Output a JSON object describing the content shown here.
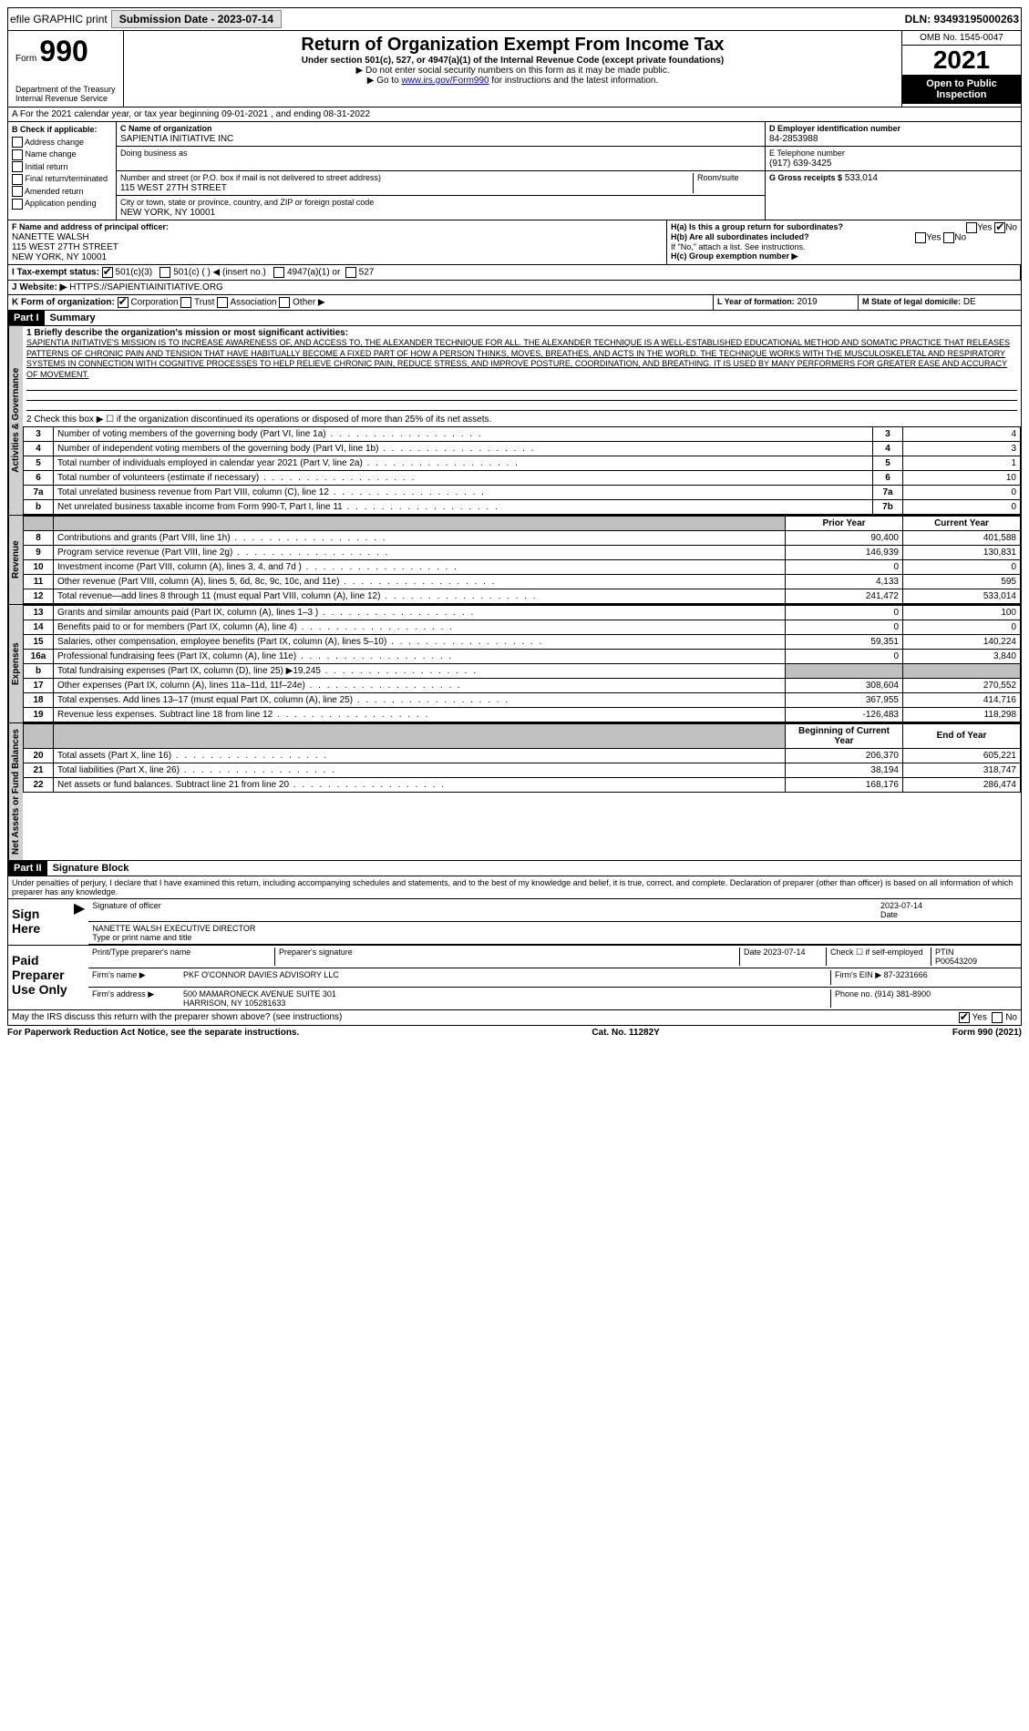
{
  "topbar": {
    "efile": "efile GRAPHIC print",
    "submission_btn": "Submission Date - 2023-07-14",
    "dln": "DLN: 93493195000263"
  },
  "header": {
    "form_prefix": "Form",
    "form_number": "990",
    "title": "Return of Organization Exempt From Income Tax",
    "subtitle": "Under section 501(c), 527, or 4947(a)(1) of the Internal Revenue Code (except private foundations)",
    "instr1": "▶ Do not enter social security numbers on this form as it may be made public.",
    "instr2_pre": "▶ Go to ",
    "instr2_link": "www.irs.gov/Form990",
    "instr2_post": " for instructions and the latest information.",
    "omb": "OMB No. 1545-0047",
    "year": "2021",
    "open": "Open to Public Inspection",
    "dept": "Department of the Treasury",
    "irs": "Internal Revenue Service"
  },
  "line_a": "A For the 2021 calendar year, or tax year beginning 09-01-2021  , and ending 08-31-2022",
  "box_b": {
    "label": "B Check if applicable:",
    "items": [
      "Address change",
      "Name change",
      "Initial return",
      "Final return/terminated",
      "Amended return",
      "Application pending"
    ]
  },
  "box_c": {
    "label": "C Name of organization",
    "name": "SAPIENTIA INITIATIVE INC",
    "dba_label": "Doing business as",
    "addr_label": "Number and street (or P.O. box if mail is not delivered to street address)",
    "room_label": "Room/suite",
    "addr": "115 WEST 27TH STREET",
    "city_label": "City or town, state or province, country, and ZIP or foreign postal code",
    "city": "NEW YORK, NY  10001"
  },
  "box_d": {
    "label": "D Employer identification number",
    "value": "84-2853988"
  },
  "box_e": {
    "label": "E Telephone number",
    "value": "(917) 639-3425"
  },
  "box_g": {
    "label": "G Gross receipts $",
    "value": "533,014"
  },
  "box_f": {
    "label": "F  Name and address of principal officer:",
    "name": "NANETTE WALSH",
    "addr1": "115 WEST 27TH STREET",
    "addr2": "NEW YORK, NY  10001"
  },
  "box_h": {
    "ha_label": "H(a)  Is this a group return for subordinates?",
    "hb_label": "H(b)  Are all subordinates included?",
    "hb_note": "If \"No,\" attach a list. See instructions.",
    "hc_label": "H(c)  Group exemption number ▶",
    "yes": "Yes",
    "no": "No"
  },
  "box_i": {
    "label": "I  Tax-exempt status:",
    "opt1": "501(c)(3)",
    "opt2": "501(c) (  ) ◀ (insert no.)",
    "opt3": "4947(a)(1) or",
    "opt4": "527"
  },
  "box_j": {
    "label": "J  Website: ▶",
    "value": "HTTPS://SAPIENTIAINITIATIVE.ORG"
  },
  "box_k": {
    "label": "K Form of organization:",
    "corp": "Corporation",
    "trust": "Trust",
    "assoc": "Association",
    "other": "Other ▶"
  },
  "box_l": {
    "label": "L Year of formation:",
    "value": "2019"
  },
  "box_m": {
    "label": "M State of legal domicile:",
    "value": "DE"
  },
  "part1": {
    "header": "Part I",
    "title": "Summary",
    "vtab_gov": "Activities & Governance",
    "vtab_rev": "Revenue",
    "vtab_exp": "Expenses",
    "vtab_net": "Net Assets or Fund Balances",
    "line1_label": "1  Briefly describe the organization's mission or most significant activities:",
    "mission": "SAPIENTIA INITIATIVE'S MISSION IS TO INCREASE AWARENESS OF, AND ACCESS TO, THE ALEXANDER TECHNIQUE FOR ALL. THE ALEXANDER TECHNIQUE IS A WELL-ESTABLISHED EDUCATIONAL METHOD AND SOMATIC PRACTICE THAT RELEASES PATTERNS OF CHRONIC PAIN AND TENSION THAT HAVE HABITUALLY BECOME A FIXED PART OF HOW A PERSON THINKS, MOVES, BREATHES, AND ACTS IN THE WORLD. THE TECHNIQUE WORKS WITH THE MUSCULOSKELETAL AND RESPIRATORY SYSTEMS IN CONNECTION WITH COGNITIVE PROCESSES TO HELP RELIEVE CHRONIC PAIN, REDUCE STRESS, AND IMPROVE POSTURE, COORDINATION, AND BREATHING. IT IS USED BY MANY PERFORMERS FOR GREATER EASE AND ACCURACY OF MOVEMENT.",
    "line2": "2   Check this box ▶ ☐ if the organization discontinued its operations or disposed of more than 25% of its net assets.",
    "rows_gov": [
      {
        "n": "3",
        "desc": "Number of voting members of the governing body (Part VI, line 1a)",
        "box": "3",
        "val": "4"
      },
      {
        "n": "4",
        "desc": "Number of independent voting members of the governing body (Part VI, line 1b)",
        "box": "4",
        "val": "3"
      },
      {
        "n": "5",
        "desc": "Total number of individuals employed in calendar year 2021 (Part V, line 2a)",
        "box": "5",
        "val": "1"
      },
      {
        "n": "6",
        "desc": "Total number of volunteers (estimate if necessary)",
        "box": "6",
        "val": "10"
      },
      {
        "n": "7a",
        "desc": "Total unrelated business revenue from Part VIII, column (C), line 12",
        "box": "7a",
        "val": "0"
      },
      {
        "n": "b",
        "desc": "Net unrelated business taxable income from Form 990-T, Part I, line 11",
        "box": "7b",
        "val": "0"
      }
    ],
    "col_prior": "Prior Year",
    "col_current": "Current Year",
    "rows_rev": [
      {
        "n": "8",
        "desc": "Contributions and grants (Part VIII, line 1h)",
        "p": "90,400",
        "c": "401,588"
      },
      {
        "n": "9",
        "desc": "Program service revenue (Part VIII, line 2g)",
        "p": "146,939",
        "c": "130,831"
      },
      {
        "n": "10",
        "desc": "Investment income (Part VIII, column (A), lines 3, 4, and 7d )",
        "p": "0",
        "c": "0"
      },
      {
        "n": "11",
        "desc": "Other revenue (Part VIII, column (A), lines 5, 6d, 8c, 9c, 10c, and 11e)",
        "p": "4,133",
        "c": "595"
      },
      {
        "n": "12",
        "desc": "Total revenue—add lines 8 through 11 (must equal Part VIII, column (A), line 12)",
        "p": "241,472",
        "c": "533,014"
      }
    ],
    "rows_exp": [
      {
        "n": "13",
        "desc": "Grants and similar amounts paid (Part IX, column (A), lines 1–3 )",
        "p": "0",
        "c": "100"
      },
      {
        "n": "14",
        "desc": "Benefits paid to or for members (Part IX, column (A), line 4)",
        "p": "0",
        "c": "0"
      },
      {
        "n": "15",
        "desc": "Salaries, other compensation, employee benefits (Part IX, column (A), lines 5–10)",
        "p": "59,351",
        "c": "140,224"
      },
      {
        "n": "16a",
        "desc": "Professional fundraising fees (Part IX, column (A), line 11e)",
        "p": "0",
        "c": "3,840"
      },
      {
        "n": "b",
        "desc": "Total fundraising expenses (Part IX, column (D), line 25) ▶19,245",
        "p": "shade",
        "c": "shade"
      },
      {
        "n": "17",
        "desc": "Other expenses (Part IX, column (A), lines 11a–11d, 11f–24e)",
        "p": "308,604",
        "c": "270,552"
      },
      {
        "n": "18",
        "desc": "Total expenses. Add lines 13–17 (must equal Part IX, column (A), line 25)",
        "p": "367,955",
        "c": "414,716"
      },
      {
        "n": "19",
        "desc": "Revenue less expenses. Subtract line 18 from line 12",
        "p": "-126,483",
        "c": "118,298"
      }
    ],
    "col_begin": "Beginning of Current Year",
    "col_end": "End of Year",
    "rows_net": [
      {
        "n": "20",
        "desc": "Total assets (Part X, line 16)",
        "p": "206,370",
        "c": "605,221"
      },
      {
        "n": "21",
        "desc": "Total liabilities (Part X, line 26)",
        "p": "38,194",
        "c": "318,747"
      },
      {
        "n": "22",
        "desc": "Net assets or fund balances. Subtract line 21 from line 20",
        "p": "168,176",
        "c": "286,474"
      }
    ]
  },
  "part2": {
    "header": "Part II",
    "title": "Signature Block",
    "perjury": "Under penalties of perjury, I declare that I have examined this return, including accompanying schedules and statements, and to the best of my knowledge and belief, it is true, correct, and complete. Declaration of preparer (other than officer) is based on all information of which preparer has any knowledge.",
    "sign_here": "Sign Here",
    "sig_officer": "Signature of officer",
    "date": "Date",
    "date_val": "2023-07-14",
    "name_title": "NANETTE WALSH  EXECUTIVE DIRECTOR",
    "type_name": "Type or print name and title",
    "paid": "Paid Preparer Use Only",
    "prep_name_label": "Print/Type preparer's name",
    "prep_sig_label": "Preparer's signature",
    "prep_date": "Date 2023-07-14",
    "check_if": "Check ☐ if self-employed",
    "ptin_label": "PTIN",
    "ptin": "P00543209",
    "firm_name_label": "Firm's name    ▶",
    "firm_name": "PKF O'CONNOR DAVIES ADVISORY LLC",
    "firm_ein_label": "Firm's EIN ▶",
    "firm_ein": "87-3231666",
    "firm_addr_label": "Firm's address ▶",
    "firm_addr": "500 MAMARONECK AVENUE SUITE 301",
    "firm_city": "HARRISON, NY  105281633",
    "phone_label": "Phone no.",
    "phone": "(914) 381-8900",
    "discuss": "May the IRS discuss this return with the preparer shown above? (see instructions)",
    "yes": "Yes",
    "no": "No"
  },
  "footer": {
    "left": "For Paperwork Reduction Act Notice, see the separate instructions.",
    "mid": "Cat. No. 11282Y",
    "right": "Form 990 (2021)"
  }
}
